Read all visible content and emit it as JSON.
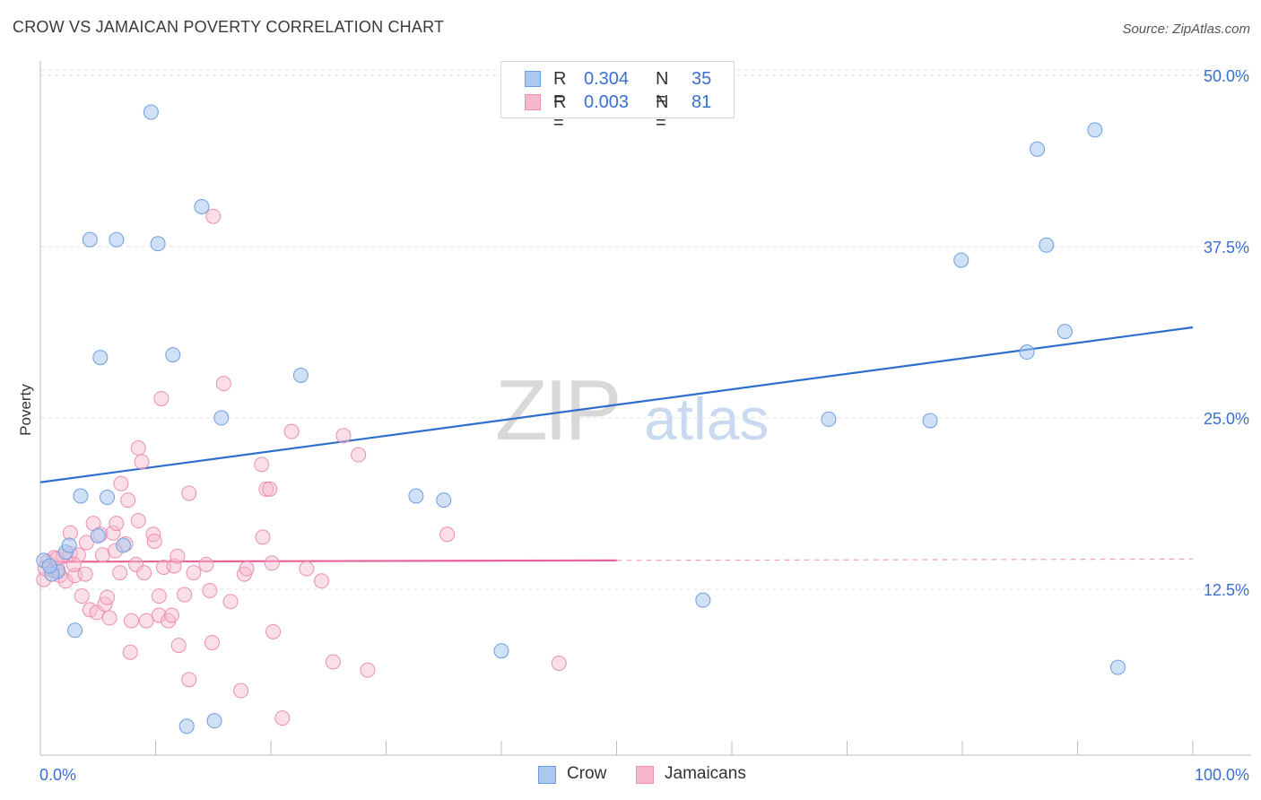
{
  "title": "CROW VS JAMAICAN POVERTY CORRELATION CHART",
  "source": "Source: ZipAtlas.com",
  "watermark": {
    "zip": "ZIP",
    "atlas": "atlas"
  },
  "legend_top": [
    {
      "r_label": "R =",
      "r_value": "0.304",
      "n_label": "N =",
      "n_value": "35"
    },
    {
      "r_label": "R =",
      "r_value": "0.003",
      "n_label": "N =",
      "n_value": "81"
    }
  ],
  "legend_bottom": [
    {
      "label": "Crow"
    },
    {
      "label": "Jamaicans"
    }
  ],
  "colors": {
    "crow_fill": "#aac8f0",
    "crow_stroke": "#6f9ee0",
    "crow_line": "#2e6fcd",
    "jam_fill": "#f6b8cc",
    "jam_stroke": "#ec8fb0",
    "jam_line": "#e8629a",
    "tick_label": "#3a6fcf"
  },
  "chart_data": {
    "type": "scatter",
    "title": "CROW VS JAMAICAN POVERTY CORRELATION CHART",
    "xlabel": "",
    "ylabel": "Poverty",
    "xlim": [
      0,
      100
    ],
    "ylim": [
      0,
      52
    ],
    "x_tick_labels": [
      "0.0%",
      "100.0%"
    ],
    "y_ticks": [
      12.5,
      25.0,
      37.5,
      50.0
    ],
    "y_tick_labels": [
      "12.5%",
      "25.0%",
      "37.5%",
      "50.0%"
    ],
    "grid": true,
    "legend_position": "top-center",
    "series": [
      {
        "name": "Crow",
        "r": 0.304,
        "n": 35,
        "trend": {
          "x": [
            0,
            100
          ],
          "y": [
            20.3,
            31.6
          ],
          "style": "solid"
        },
        "points": [
          [
            0.3,
            14.6
          ],
          [
            1.5,
            13.8
          ],
          [
            2.2,
            15.2
          ],
          [
            2.5,
            15.7
          ],
          [
            3.0,
            9.5
          ],
          [
            3.5,
            19.3
          ],
          [
            4.3,
            38.0
          ],
          [
            5.0,
            16.4
          ],
          [
            5.2,
            29.4
          ],
          [
            5.8,
            19.2
          ],
          [
            6.6,
            38.0
          ],
          [
            7.2,
            15.7
          ],
          [
            9.6,
            47.3
          ],
          [
            10.2,
            37.7
          ],
          [
            12.7,
            2.5
          ],
          [
            11.5,
            29.6
          ],
          [
            14.0,
            40.4
          ],
          [
            15.1,
            2.9
          ],
          [
            15.7,
            25.0
          ],
          [
            22.6,
            28.1
          ],
          [
            32.6,
            19.3
          ],
          [
            35.0,
            19.0
          ],
          [
            40.0,
            8.0
          ],
          [
            57.5,
            11.7
          ],
          [
            68.4,
            24.9
          ],
          [
            77.2,
            24.8
          ],
          [
            79.9,
            36.5
          ],
          [
            85.6,
            29.8
          ],
          [
            86.5,
            44.6
          ],
          [
            87.3,
            37.6
          ],
          [
            88.9,
            31.3
          ],
          [
            91.5,
            46.0
          ],
          [
            93.5,
            6.8
          ],
          [
            1.0,
            13.6
          ],
          [
            0.8,
            14.2
          ]
        ]
      },
      {
        "name": "Jamaicans",
        "r": 0.003,
        "n": 81,
        "trend": {
          "x": [
            0,
            100
          ],
          "y": [
            14.5,
            14.7
          ],
          "solid_until": 50
        },
        "points": [
          [
            0.3,
            13.2
          ],
          [
            0.6,
            14.5
          ],
          [
            1.0,
            13.9
          ],
          [
            1.2,
            14.8
          ],
          [
            1.5,
            14.0
          ],
          [
            1.7,
            13.5
          ],
          [
            2.0,
            14.9
          ],
          [
            2.2,
            13.1
          ],
          [
            2.6,
            15.1
          ],
          [
            2.6,
            16.6
          ],
          [
            3.0,
            13.5
          ],
          [
            3.3,
            15.0
          ],
          [
            3.6,
            12.0
          ],
          [
            3.9,
            13.6
          ],
          [
            4.0,
            15.9
          ],
          [
            4.3,
            11.0
          ],
          [
            4.6,
            17.3
          ],
          [
            4.9,
            10.8
          ],
          [
            5.2,
            16.5
          ],
          [
            5.4,
            15.0
          ],
          [
            5.6,
            11.4
          ],
          [
            5.8,
            11.9
          ],
          [
            6.0,
            10.4
          ],
          [
            6.3,
            16.6
          ],
          [
            6.5,
            15.3
          ],
          [
            6.6,
            17.3
          ],
          [
            6.9,
            13.7
          ],
          [
            7.0,
            20.2
          ],
          [
            7.4,
            15.8
          ],
          [
            7.6,
            19.0
          ],
          [
            7.8,
            7.9
          ],
          [
            7.9,
            10.2
          ],
          [
            8.3,
            14.3
          ],
          [
            8.5,
            17.5
          ],
          [
            8.5,
            22.8
          ],
          [
            8.8,
            21.8
          ],
          [
            9.0,
            13.7
          ],
          [
            9.2,
            10.2
          ],
          [
            9.8,
            16.5
          ],
          [
            9.9,
            16.0
          ],
          [
            10.3,
            12.0
          ],
          [
            10.3,
            10.6
          ],
          [
            10.5,
            26.4
          ],
          [
            10.7,
            14.1
          ],
          [
            11.1,
            10.2
          ],
          [
            11.4,
            10.6
          ],
          [
            11.6,
            14.2
          ],
          [
            11.9,
            14.9
          ],
          [
            12.0,
            8.4
          ],
          [
            12.5,
            12.1
          ],
          [
            12.9,
            19.5
          ],
          [
            12.9,
            5.9
          ],
          [
            13.3,
            13.7
          ],
          [
            14.4,
            14.3
          ],
          [
            14.7,
            12.4
          ],
          [
            14.9,
            8.6
          ],
          [
            15.0,
            39.7
          ],
          [
            15.9,
            27.5
          ],
          [
            16.5,
            11.6
          ],
          [
            17.4,
            5.1
          ],
          [
            17.7,
            13.6
          ],
          [
            17.9,
            14.0
          ],
          [
            19.2,
            21.6
          ],
          [
            19.3,
            16.3
          ],
          [
            19.6,
            19.8
          ],
          [
            19.9,
            19.8
          ],
          [
            20.1,
            14.4
          ],
          [
            20.2,
            9.4
          ],
          [
            21.0,
            3.1
          ],
          [
            21.8,
            24.0
          ],
          [
            23.1,
            14.0
          ],
          [
            24.4,
            13.1
          ],
          [
            25.4,
            7.2
          ],
          [
            26.3,
            23.7
          ],
          [
            27.6,
            22.3
          ],
          [
            28.4,
            6.6
          ],
          [
            35.3,
            16.5
          ],
          [
            45.0,
            7.1
          ],
          [
            0.4,
            14.0
          ],
          [
            1.4,
            14.7
          ],
          [
            2.9,
            14.3
          ]
        ]
      }
    ]
  }
}
